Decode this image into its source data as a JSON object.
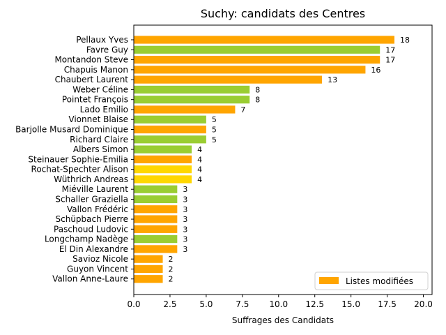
{
  "chart_data": {
    "type": "bar",
    "orientation": "horizontal",
    "title": "Suchy: candidats des Centres",
    "xlabel": "Suffrages des Candidats",
    "ylabel": "",
    "xlim": [
      0,
      20.6
    ],
    "xticks": [
      0.0,
      2.5,
      5.0,
      7.5,
      10.0,
      12.5,
      15.0,
      17.5,
      20.0
    ],
    "xtick_labels": [
      "0.0",
      "2.5",
      "5.0",
      "7.5",
      "10.0",
      "12.5",
      "15.0",
      "17.5",
      "20.0"
    ],
    "grid": false,
    "legend": {
      "position": "lower-right",
      "entries": [
        {
          "label": "Listes modifiées",
          "color": "#FFA500"
        }
      ]
    },
    "colors": {
      "orange": "#FFA500",
      "green": "#9ACD32",
      "yellow": "#FFD700"
    },
    "categories": [
      "Pellaux Yves",
      "Favre Guy",
      "Montandon Steve",
      "Chapuis Manon",
      "Chaubert Laurent",
      "Weber Céline",
      "Pointet François",
      "Lado Emilio",
      "Vionnet Blaise",
      "Barjolle Musard Dominique",
      "Richard Claire",
      "Albers Simon",
      "Steinauer Sophie-Emilia",
      "Rochat-Spechter Alison",
      "Wüthrich Andreas",
      "Miéville Laurent",
      "Schaller Graziella",
      "Vallon Frédéric",
      "Schüpbach Pierre",
      "Paschoud Ludovic",
      "Longchamp Nadège",
      "El Din Alexandre",
      "Savioz Nicole",
      "Guyon Vincent",
      "Vallon Anne-Laure"
    ],
    "values": [
      18,
      17,
      17,
      16,
      13,
      8,
      8,
      7,
      5,
      5,
      5,
      4,
      4,
      4,
      4,
      3,
      3,
      3,
      3,
      3,
      3,
      3,
      2,
      2,
      2
    ],
    "bar_colors": [
      "orange",
      "green",
      "orange",
      "orange",
      "orange",
      "green",
      "green",
      "orange",
      "green",
      "orange",
      "green",
      "green",
      "orange",
      "yellow",
      "yellow",
      "green",
      "green",
      "orange",
      "orange",
      "orange",
      "green",
      "orange",
      "orange",
      "orange",
      "orange"
    ]
  }
}
